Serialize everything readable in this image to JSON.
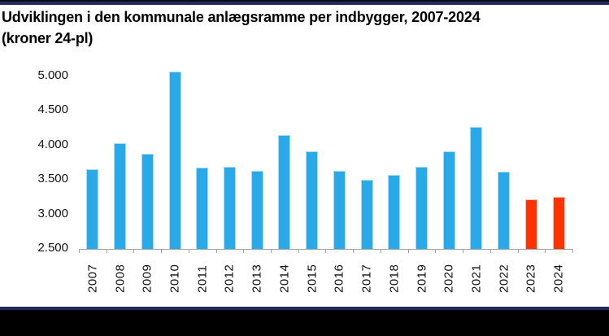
{
  "title": {
    "line1": "Udviklingen i den kommunale anlægsramme per indbygger, 2007-2024",
    "line2": "(kroner 24-pl)"
  },
  "colors": {
    "bar_default": "#29A9E8",
    "bar_default_edge": "#A8DDF6",
    "bar_highlight": "#FF3300",
    "bar_highlight_edge": "#FFC0B0",
    "axis": "#A6A6A6",
    "border_navy": "#232A5E",
    "footer_black": "#000000"
  },
  "chart_data": {
    "type": "bar",
    "title": "Udviklingen i den kommunale anlægsramme per indbygger, 2007-2024 (kroner 24-pl)",
    "categories": [
      "2007",
      "2008",
      "2009",
      "2010",
      "2011",
      "2012",
      "2013",
      "2014",
      "2015",
      "2016",
      "2017",
      "2018",
      "2019",
      "2020",
      "2021",
      "2022",
      "2023",
      "2024"
    ],
    "values": [
      3660,
      4030,
      3880,
      5070,
      3680,
      3690,
      3630,
      4150,
      3920,
      3630,
      3500,
      3570,
      3690,
      3910,
      4270,
      3620,
      3220,
      3250
    ],
    "highlight_years": [
      "2023",
      "2024"
    ],
    "xlabel": "",
    "ylabel": "",
    "ylim": [
      2500,
      5000
    ],
    "yticks": [
      2500,
      3000,
      3500,
      4000,
      4500,
      5000
    ],
    "ytick_labels": [
      "2.500",
      "3.000",
      "3.500",
      "4.000",
      "4.500",
      "5.000"
    ],
    "grid": false,
    "legend": false,
    "x_tick_label_rotation_deg": 90
  }
}
